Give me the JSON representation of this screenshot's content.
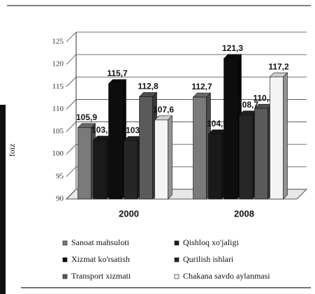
{
  "chart_data": {
    "type": "bar",
    "y_label": "foiz",
    "categories": [
      "2000",
      "2008"
    ],
    "series": [
      {
        "name": "Sanoat mahsuloti",
        "color": "#7a7a7a",
        "values": [
          105.9,
          112.7
        ],
        "value_labels": [
          "105,9",
          "112,7"
        ]
      },
      {
        "name": "Qishloq xo'jaligi",
        "color": "#1a1a1a",
        "values": [
          103.1,
          104.5
        ],
        "value_labels": [
          "103,1",
          "104,5"
        ]
      },
      {
        "name": "Xizmat ko'rsatish",
        "color": "#0d0d0d",
        "values": [
          115.7,
          121.3
        ],
        "value_labels": [
          "115,7",
          "121,3"
        ]
      },
      {
        "name": "Qurilish ishlari",
        "color": "#262626",
        "values": [
          103,
          108.7
        ],
        "value_labels": [
          "103",
          "108,7"
        ]
      },
      {
        "name": "Transport xizmati",
        "color": "#5a5a5a",
        "values": [
          112.8,
          110.2
        ],
        "value_labels": [
          "112,8",
          "110,2"
        ]
      },
      {
        "name": "Chakana savdo aylanmasi",
        "color": "#f4f4f4",
        "values": [
          107.6,
          117.2
        ],
        "value_labels": [
          "107,6",
          "117,2"
        ]
      }
    ],
    "ylim": [
      90,
      125
    ],
    "yticks": [
      90,
      95,
      100,
      105,
      110,
      115,
      120,
      125
    ],
    "grid": true
  }
}
